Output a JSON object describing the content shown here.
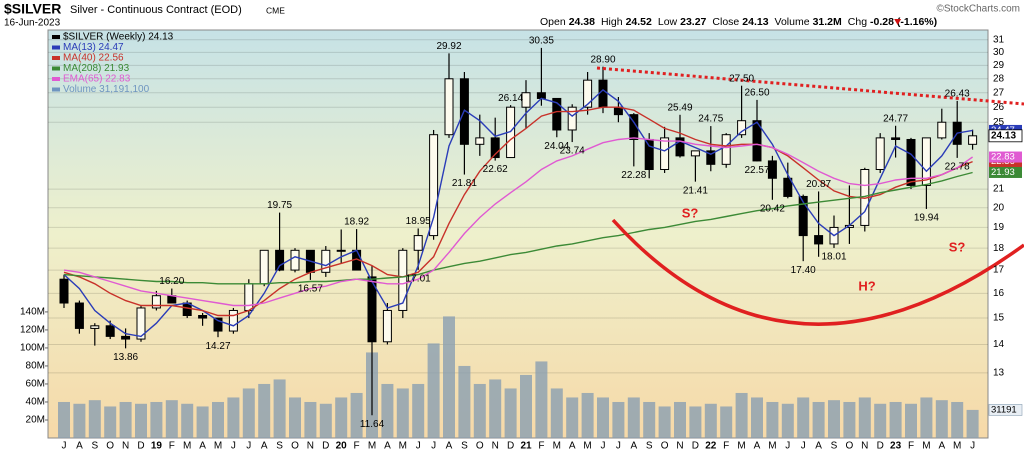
{
  "chart_data": {
    "type": "candlestick",
    "title": "$SILVER",
    "subtitle": "Silver - Continuous Contract (EOD)",
    "exchange": "CME",
    "date": "16-Jun-2023",
    "credit": "©StockCharts.com",
    "quote": [
      {
        "label": "Open",
        "value": "24.38"
      },
      {
        "label": "High",
        "value": "24.52"
      },
      {
        "label": "Low",
        "value": "23.27"
      },
      {
        "label": "Close",
        "value": "24.13"
      },
      {
        "label": "Volume",
        "value": "31.2M"
      },
      {
        "label": "Chg",
        "value": "-0.28 (-1.16%)"
      }
    ],
    "categories": [
      "J",
      "A",
      "S",
      "O",
      "N",
      "D",
      "19",
      "F",
      "M",
      "A",
      "M",
      "J",
      "J",
      "A",
      "S",
      "O",
      "N",
      "D",
      "20",
      "F",
      "M",
      "A",
      "M",
      "J",
      "J",
      "A",
      "S",
      "O",
      "N",
      "D",
      "21",
      "F",
      "M",
      "A",
      "M",
      "J",
      "J",
      "A",
      "S",
      "O",
      "N",
      "D",
      "22",
      "F",
      "M",
      "A",
      "M",
      "J",
      "J",
      "A",
      "S",
      "O",
      "N",
      "D",
      "23",
      "F",
      "M",
      "A",
      "M",
      "J"
    ],
    "ohlc": {
      "name": "$SILVER (Weekly) 24.13",
      "color": "#000000",
      "last": 24.13,
      "open": [
        16.6,
        15.6,
        14.6,
        14.7,
        14.3,
        14.2,
        15.4,
        15.9,
        15.6,
        15.1,
        15.0,
        14.5,
        15.3,
        16.4,
        17.9,
        17.0,
        17.9,
        16.9,
        17.9,
        17.9,
        16.7,
        14.1,
        15.3,
        17.9,
        18.6,
        24.2,
        28.0,
        23.6,
        24.0,
        22.8,
        26.0,
        27.0,
        26.6,
        24.5,
        26.0,
        27.9,
        26.0,
        25.5,
        23.9,
        22.1,
        24.0,
        22.9,
        23.2,
        22.4,
        24.2,
        25.1,
        22.6,
        21.6,
        20.6,
        18.6,
        18.2,
        19.0,
        19.1,
        22.1,
        24.0,
        23.9,
        21.2,
        24.0,
        25.0,
        23.6
      ],
      "high": [
        16.8,
        15.7,
        14.8,
        14.9,
        14.6,
        15.5,
        16.1,
        16.2,
        15.7,
        15.2,
        15.0,
        15.4,
        16.6,
        17.9,
        19.75,
        18.0,
        17.9,
        18.1,
        18.9,
        18.92,
        17.2,
        15.6,
        18.0,
        18.95,
        24.5,
        29.92,
        28.5,
        25.5,
        25.3,
        26.14,
        27.9,
        30.35,
        26.6,
        26.2,
        28.5,
        28.9,
        26.7,
        25.6,
        24.3,
        24.7,
        25.49,
        23.2,
        24.75,
        24.3,
        27.5,
        26.5,
        22.9,
        22.5,
        20.7,
        20.87,
        19.6,
        21.2,
        22.2,
        24.3,
        24.77,
        24.0,
        24.0,
        25.9,
        26.43,
        24.52
      ],
      "low": [
        15.4,
        14.4,
        13.96,
        14.2,
        13.86,
        14.1,
        15.3,
        15.6,
        15.0,
        14.7,
        14.27,
        14.4,
        15.0,
        16.3,
        16.95,
        16.9,
        16.57,
        16.7,
        17.3,
        17.0,
        11.64,
        14.0,
        15.0,
        17.01,
        18.4,
        24.0,
        21.81,
        22.9,
        22.62,
        22.8,
        24.6,
        26.1,
        24.04,
        23.74,
        25.5,
        25.6,
        25.0,
        22.28,
        21.6,
        21.9,
        22.8,
        21.41,
        22.0,
        22.2,
        24.0,
        22.57,
        20.42,
        20.5,
        17.4,
        17.6,
        18.01,
        18.2,
        18.8,
        21.9,
        22.8,
        21.0,
        19.94,
        23.9,
        22.78,
        23.27
      ],
      "close": [
        15.6,
        14.6,
        14.7,
        14.3,
        14.2,
        15.4,
        15.9,
        15.6,
        15.1,
        15.0,
        14.5,
        15.3,
        16.4,
        17.9,
        17.0,
        17.9,
        16.9,
        17.9,
        17.9,
        17.0,
        14.1,
        15.3,
        17.9,
        18.6,
        24.2,
        28.0,
        23.6,
        24.0,
        22.8,
        26.0,
        27.0,
        26.6,
        24.5,
        26.0,
        27.9,
        26.0,
        25.5,
        23.9,
        22.1,
        24.0,
        22.9,
        23.2,
        22.4,
        24.2,
        25.1,
        22.6,
        21.6,
        20.6,
        18.6,
        18.2,
        19.0,
        19.1,
        22.1,
        24.0,
        23.9,
        21.2,
        24.0,
        25.0,
        23.6,
        24.13
      ],
      "high_labels": [
        null,
        null,
        null,
        null,
        null,
        null,
        null,
        "16.20",
        null,
        null,
        null,
        null,
        null,
        null,
        "19.75",
        null,
        null,
        null,
        null,
        "18.92",
        null,
        null,
        null,
        "18.95",
        null,
        "29.92",
        null,
        null,
        null,
        "26.14",
        null,
        "30.35",
        null,
        null,
        null,
        "28.90",
        null,
        null,
        null,
        null,
        "25.49",
        null,
        "24.75",
        null,
        "27.50",
        "26.50",
        null,
        null,
        null,
        "20.87",
        null,
        null,
        null,
        null,
        "24.77",
        null,
        null,
        null,
        "26.43",
        null
      ],
      "low_labels": [
        null,
        null,
        null,
        null,
        "13.86",
        null,
        null,
        null,
        null,
        null,
        "14.27",
        null,
        null,
        null,
        null,
        null,
        "16.57",
        null,
        null,
        null,
        "11.64",
        null,
        null,
        "17.01",
        null,
        null,
        "21.81",
        null,
        "22.62",
        null,
        null,
        null,
        "24.04",
        "23.74",
        null,
        null,
        null,
        "22.28",
        null,
        null,
        null,
        "21.41",
        null,
        null,
        null,
        "22.57",
        "20.42",
        null,
        "17.40",
        null,
        "18.01",
        null,
        null,
        null,
        null,
        null,
        "19.94",
        null,
        "22.78",
        null
      ]
    },
    "series": [
      {
        "name": "MA(13) 24.47",
        "color": "#2a3cb8",
        "last": 24.47,
        "values": [
          16.8,
          16.2,
          15.3,
          14.8,
          14.4,
          14.3,
          14.8,
          15.5,
          15.6,
          15.3,
          14.9,
          14.7,
          15.1,
          16.0,
          17.2,
          17.6,
          17.4,
          17.2,
          17.6,
          17.9,
          16.5,
          15.4,
          15.6,
          17.2,
          19.5,
          23.5,
          25.8,
          25.1,
          24.1,
          24.4,
          25.6,
          26.6,
          26.3,
          25.4,
          26.2,
          27.2,
          26.4,
          25.0,
          23.5,
          23.2,
          23.8,
          23.4,
          23.0,
          23.5,
          24.4,
          25.0,
          23.6,
          21.8,
          20.3,
          19.2,
          18.6,
          19.1,
          19.8,
          21.6,
          23.5,
          23.0,
          22.0,
          22.9,
          24.3,
          24.47
        ]
      },
      {
        "name": "MA(40) 22.56",
        "color": "#c8322a",
        "last": 22.56,
        "values": [
          16.9,
          16.7,
          16.4,
          16.0,
          15.7,
          15.5,
          15.5,
          15.5,
          15.4,
          15.3,
          15.1,
          15.1,
          15.3,
          15.7,
          16.2,
          16.6,
          16.9,
          17.1,
          17.3,
          17.5,
          17.2,
          16.8,
          16.7,
          16.9,
          17.6,
          19.2,
          20.7,
          22.0,
          23.0,
          23.9,
          24.6,
          25.4,
          25.7,
          25.7,
          25.8,
          26.0,
          26.0,
          25.8,
          25.2,
          24.6,
          24.3,
          23.9,
          23.6,
          23.5,
          23.6,
          23.6,
          23.4,
          22.9,
          22.2,
          21.5,
          20.9,
          20.6,
          20.5,
          20.7,
          21.1,
          21.4,
          21.5,
          21.8,
          22.2,
          22.56
        ]
      },
      {
        "name": "MA(208) 21.93",
        "color": "#3c8a36",
        "last": 21.93,
        "values": [
          16.8,
          16.75,
          16.7,
          16.65,
          16.6,
          16.55,
          16.5,
          16.5,
          16.45,
          16.45,
          16.4,
          16.4,
          16.4,
          16.4,
          16.45,
          16.45,
          16.5,
          16.5,
          16.55,
          16.6,
          16.6,
          16.65,
          16.7,
          16.8,
          17.0,
          17.15,
          17.3,
          17.4,
          17.55,
          17.7,
          17.8,
          17.95,
          18.1,
          18.2,
          18.35,
          18.5,
          18.6,
          18.75,
          18.9,
          19.0,
          19.15,
          19.3,
          19.4,
          19.55,
          19.7,
          19.85,
          19.95,
          20.1,
          20.2,
          20.3,
          20.4,
          20.5,
          20.6,
          20.8,
          20.95,
          21.1,
          21.25,
          21.45,
          21.7,
          21.93
        ]
      },
      {
        "name": "EMA(65) 22.83",
        "color": "#e05ad2",
        "last": 22.83,
        "values": [
          17.0,
          16.9,
          16.7,
          16.5,
          16.3,
          16.1,
          16.0,
          15.9,
          15.8,
          15.7,
          15.6,
          15.5,
          15.5,
          15.6,
          15.8,
          16.0,
          16.2,
          16.3,
          16.5,
          16.6,
          16.5,
          16.4,
          16.4,
          16.6,
          17.0,
          17.8,
          18.7,
          19.5,
          20.2,
          20.8,
          21.4,
          22.1,
          22.6,
          22.9,
          23.3,
          23.7,
          23.9,
          24.0,
          23.9,
          23.8,
          23.8,
          23.6,
          23.5,
          23.4,
          23.5,
          23.6,
          23.4,
          23.0,
          22.5,
          22.0,
          21.6,
          21.3,
          21.2,
          21.3,
          21.5,
          21.6,
          21.6,
          21.8,
          22.2,
          22.83
        ]
      }
    ],
    "volume": {
      "name": "Volume 31,191,100",
      "color": "#8a9fb2",
      "tag": "31191",
      "axis": "y2",
      "values": [
        40,
        38,
        42,
        35,
        40,
        38,
        40,
        42,
        38,
        35,
        40,
        45,
        55,
        60,
        65,
        45,
        40,
        38,
        45,
        50,
        95,
        60,
        55,
        60,
        105,
        135,
        80,
        60,
        65,
        55,
        70,
        85,
        55,
        45,
        50,
        45,
        40,
        45,
        40,
        35,
        40,
        35,
        38,
        35,
        50,
        45,
        40,
        38,
        45,
        40,
        42,
        40,
        45,
        38,
        40,
        38,
        45,
        42,
        40,
        31.1911
      ]
    },
    "ylim": [
      10.97,
      31.8
    ],
    "yticks": [
      31,
      30,
      29,
      28,
      27,
      26,
      25,
      21,
      20,
      19,
      18,
      17,
      16,
      15,
      14,
      13
    ],
    "log_scale": true,
    "y2lim": [
      0,
      453
    ],
    "y2ticks": [
      {
        "value": 20,
        "label": "20M"
      },
      {
        "value": 40,
        "label": "40M"
      },
      {
        "value": 60,
        "label": "60M"
      },
      {
        "value": 80,
        "label": "80M"
      },
      {
        "value": 100,
        "label": "100M"
      },
      {
        "value": 120,
        "label": "120M"
      },
      {
        "value": 140,
        "label": "140M"
      }
    ],
    "grid": true,
    "legend": "top-left",
    "annotations": [
      "S?",
      "H?",
      "S?"
    ]
  }
}
